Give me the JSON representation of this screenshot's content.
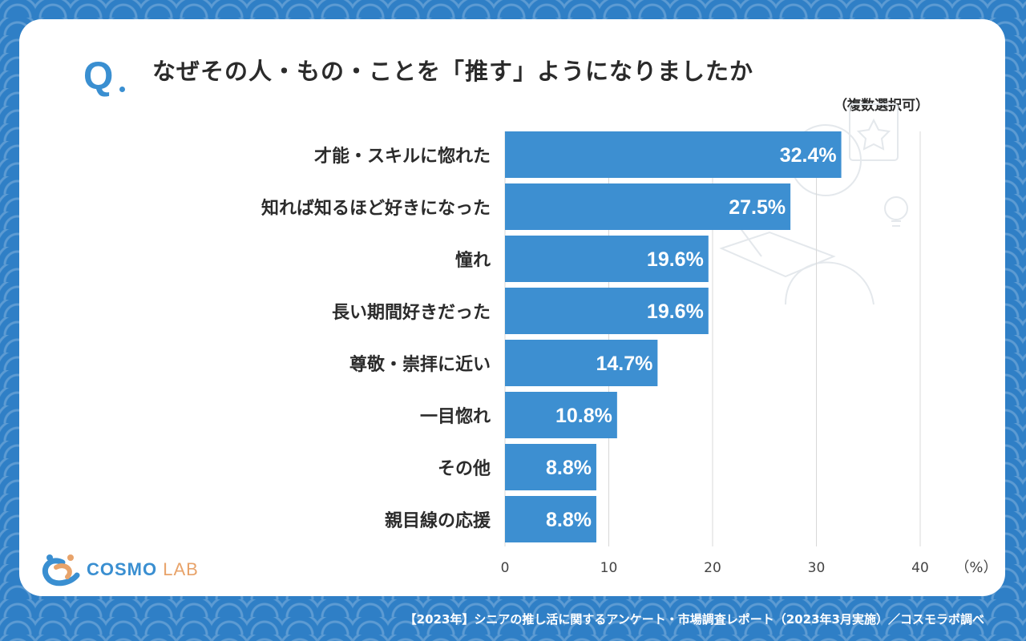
{
  "header": {
    "q_mark": "Q",
    "question": "なぜその人・もの・ことを「推す」ようになりましたか",
    "note": "（複数選択可）"
  },
  "logo": {
    "part1": "COSMO",
    "part2": "LAB"
  },
  "footer": {
    "source": "【2023年】シニアの推し活に関するアンケート・市場調査レポート（2023年3月実施）／コスモラボ調べ"
  },
  "colors": {
    "bar": "#3d8fd1",
    "accent": "#3a8fd1",
    "background": "#2f7fc6"
  },
  "chart_data": {
    "type": "bar",
    "orientation": "horizontal",
    "categories": [
      "才能・スキルに惚れた",
      "知れば知るほど好きになった",
      "憧れ",
      "長い期間好きだった",
      "尊敬・崇拝に近い",
      "一目惚れ",
      "その他",
      "親目線の応援"
    ],
    "values": [
      32.4,
      27.5,
      19.6,
      19.6,
      14.7,
      10.8,
      8.8,
      8.8
    ],
    "value_labels": [
      "32.4%",
      "27.5%",
      "19.6%",
      "19.6%",
      "14.7%",
      "10.8%",
      "8.8%",
      "8.8%"
    ],
    "x_ticks": [
      0,
      10,
      20,
      30,
      40
    ],
    "x_unit": "（%）",
    "xlim": [
      0,
      40
    ],
    "grid": true
  }
}
